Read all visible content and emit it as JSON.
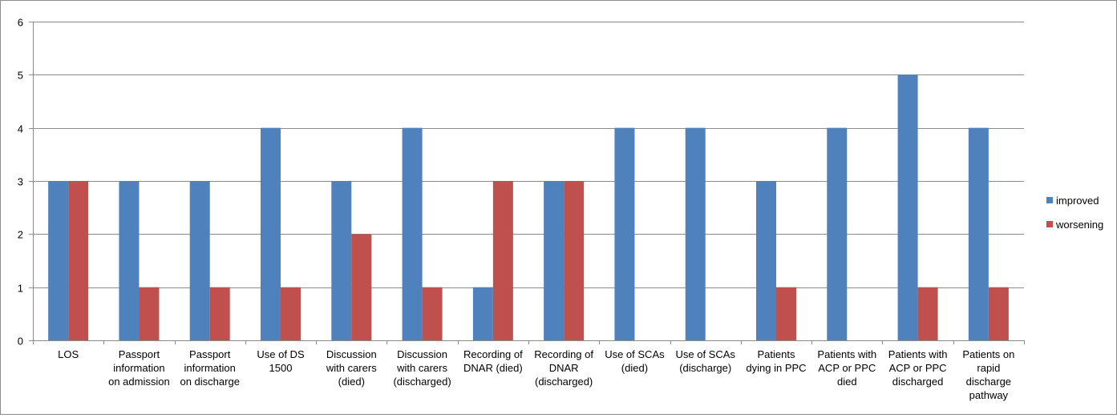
{
  "chart_data": {
    "type": "bar",
    "categories": [
      [
        "LOS"
      ],
      [
        "Passport",
        "information",
        "on admission"
      ],
      [
        "Passport",
        "information",
        "on discharge"
      ],
      [
        "Use of DS",
        "1500"
      ],
      [
        "Discussion",
        "with carers",
        "(died)"
      ],
      [
        "Discussion",
        "with carers",
        "(discharged)"
      ],
      [
        "Recording of",
        "DNAR (died)"
      ],
      [
        "Recording of",
        "DNAR",
        "(discharged)"
      ],
      [
        "Use of SCAs",
        "(died)"
      ],
      [
        "Use of SCAs",
        "(discharge)"
      ],
      [
        "Patients",
        "dying in PPC"
      ],
      [
        "Patients with",
        "ACP or PPC",
        "died"
      ],
      [
        "Patients with",
        "ACP or PPC",
        "discharged"
      ],
      [
        "Patients on",
        "rapid",
        "discharge",
        "pathway"
      ]
    ],
    "series": [
      {
        "name": "improved",
        "color": "#4f81bd",
        "values": [
          3,
          3,
          3,
          4,
          3,
          4,
          1,
          3,
          4,
          4,
          3,
          4,
          5,
          4
        ]
      },
      {
        "name": "worsening",
        "color": "#c0504d",
        "values": [
          3,
          1,
          1,
          1,
          2,
          1,
          3,
          3,
          0,
          0,
          1,
          0,
          1,
          1
        ]
      }
    ],
    "yticks": [
      "0",
      "1",
      "2",
      "3",
      "4",
      "5",
      "6"
    ],
    "ylim": [
      0,
      6
    ],
    "grid": true,
    "legend_position": "right",
    "title": "",
    "xlabel": "",
    "ylabel": ""
  }
}
